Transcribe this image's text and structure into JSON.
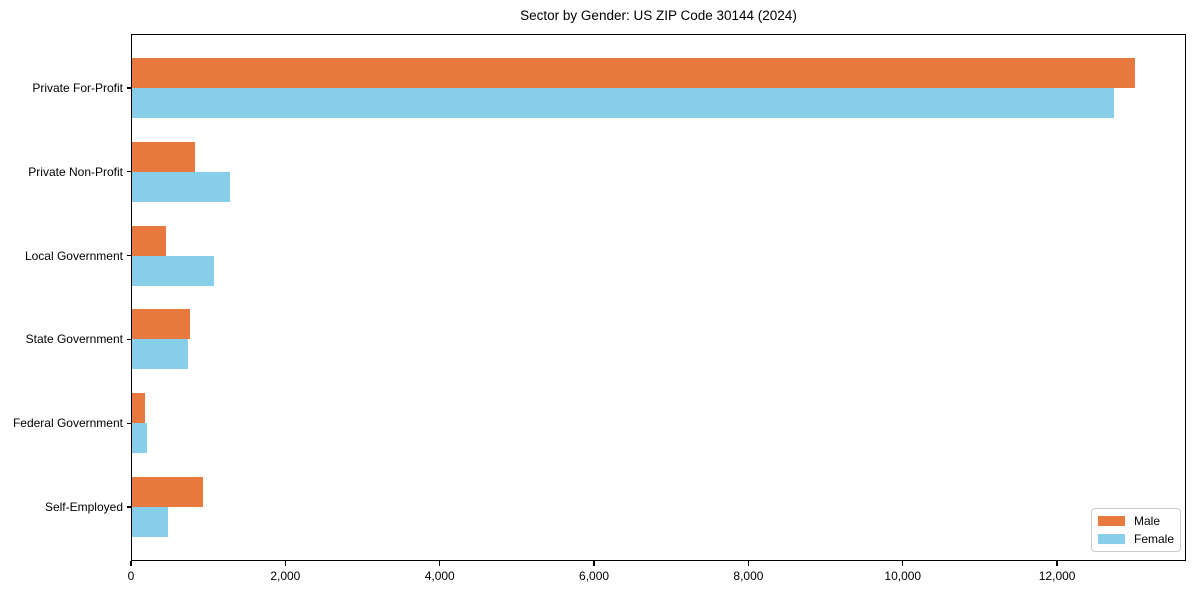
{
  "chart_data": {
    "type": "bar",
    "orientation": "horizontal",
    "title": "Sector by Gender: US ZIP Code 30144 (2024)",
    "categories": [
      "Private For-Profit",
      "Private Non-Profit",
      "Local Government",
      "State Government",
      "Federal Government",
      "Self-Employed"
    ],
    "series": [
      {
        "name": "Male",
        "color": "#e8793e",
        "values": [
          13000,
          820,
          440,
          750,
          170,
          915
        ]
      },
      {
        "name": "Female",
        "color": "#87ceeb",
        "values": [
          12730,
          1275,
          1060,
          725,
          190,
          465
        ]
      }
    ],
    "xlabel": "",
    "ylabel": "",
    "xlim": [
      0,
      13670
    ],
    "xticks": [
      0,
      2000,
      4000,
      6000,
      8000,
      10000,
      12000
    ],
    "xtick_labels": [
      "0",
      "2,000",
      "4,000",
      "6,000",
      "8,000",
      "10,000",
      "12,000"
    ],
    "grid": false,
    "legend": {
      "position": "lower-right"
    },
    "frame_color": "#000000",
    "background_color": "#ffffff"
  }
}
